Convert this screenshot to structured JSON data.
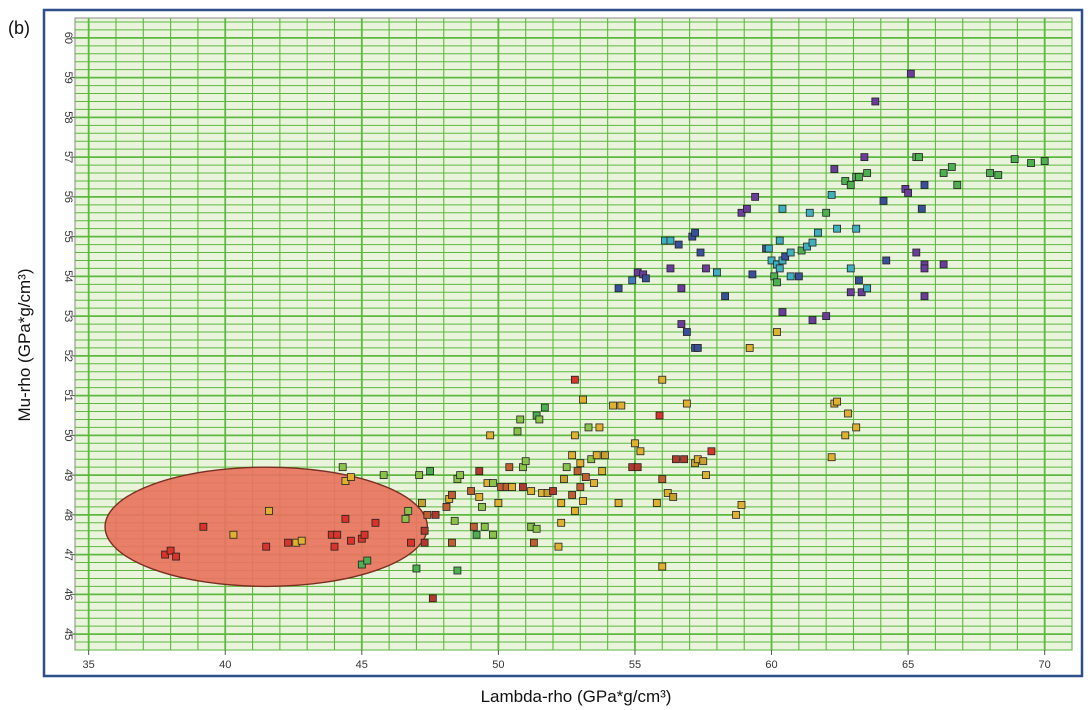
{
  "panel_label": "(b)",
  "chart_data": {
    "type": "scatter",
    "xlabel": "Lambda-rho (GPa*g/cm³)",
    "ylabel": "Mu-rho (GPa*g/cm³)",
    "xlim": [
      34.5,
      71
    ],
    "ylim": [
      44.6,
      60.5
    ],
    "xticks": [
      35,
      40,
      45,
      50,
      55,
      60,
      65,
      70
    ],
    "yticks": [
      45,
      46,
      47,
      48,
      49,
      50,
      51,
      52,
      53,
      54,
      55,
      56,
      57,
      58,
      59,
      60
    ],
    "ytick_labels": [
      "45",
      "46",
      "47",
      "48",
      "49",
      "50",
      "51",
      "52",
      "53",
      "54",
      "55",
      "56",
      "57",
      "58",
      "59",
      "60"
    ],
    "grid": true,
    "colors": {
      "background": "#eaf4dc",
      "grid": "#5cb83f",
      "frame": "#2f4f8a",
      "ellipse_fill": "#e8735e",
      "ellipse_stroke": "#7a2e22"
    },
    "highlight_ellipse": {
      "cx": 41.5,
      "cy": 47.7,
      "rx": 5.9,
      "ry": 1.5
    },
    "points": [
      {
        "x": 37.8,
        "y": 47.0,
        "c": "#d9342b"
      },
      {
        "x": 38.0,
        "y": 47.1,
        "c": "#d9342b"
      },
      {
        "x": 38.2,
        "y": 46.95,
        "c": "#d9342b"
      },
      {
        "x": 39.2,
        "y": 47.7,
        "c": "#d9342b"
      },
      {
        "x": 40.3,
        "y": 47.5,
        "c": "#e0b030"
      },
      {
        "x": 41.5,
        "y": 47.2,
        "c": "#d9342b"
      },
      {
        "x": 41.6,
        "y": 48.1,
        "c": "#e0b030"
      },
      {
        "x": 42.3,
        "y": 47.3,
        "c": "#d9342b"
      },
      {
        "x": 42.6,
        "y": 47.3,
        "c": "#e0b030"
      },
      {
        "x": 42.8,
        "y": 47.35,
        "c": "#e0b030"
      },
      {
        "x": 43.9,
        "y": 47.5,
        "c": "#d9342b"
      },
      {
        "x": 44.1,
        "y": 47.5,
        "c": "#d9342b"
      },
      {
        "x": 44.0,
        "y": 47.2,
        "c": "#d9342b"
      },
      {
        "x": 44.4,
        "y": 47.9,
        "c": "#d9342b"
      },
      {
        "x": 44.6,
        "y": 47.35,
        "c": "#d9342b"
      },
      {
        "x": 45.0,
        "y": 47.4,
        "c": "#d9342b"
      },
      {
        "x": 45.1,
        "y": 47.5,
        "c": "#d9342b"
      },
      {
        "x": 45.5,
        "y": 47.8,
        "c": "#d9342b"
      },
      {
        "x": 44.3,
        "y": 49.2,
        "c": "#8bc34a"
      },
      {
        "x": 44.4,
        "y": 48.85,
        "c": "#e0b030"
      },
      {
        "x": 44.6,
        "y": 48.95,
        "c": "#e0b030"
      },
      {
        "x": 45.0,
        "y": 46.75,
        "c": "#4caf50"
      },
      {
        "x": 45.2,
        "y": 46.85,
        "c": "#4caf50"
      },
      {
        "x": 45.8,
        "y": 49.0,
        "c": "#8bc34a"
      },
      {
        "x": 46.6,
        "y": 47.9,
        "c": "#8bc34a"
      },
      {
        "x": 46.7,
        "y": 48.1,
        "c": "#8bc34a"
      },
      {
        "x": 46.8,
        "y": 47.3,
        "c": "#d9342b"
      },
      {
        "x": 47.0,
        "y": 46.65,
        "c": "#4caf50"
      },
      {
        "x": 47.1,
        "y": 49.0,
        "c": "#8bc34a"
      },
      {
        "x": 47.2,
        "y": 48.3,
        "c": "#c8a02e"
      },
      {
        "x": 47.3,
        "y": 47.6,
        "c": "#b03a2e"
      },
      {
        "x": 47.3,
        "y": 47.3,
        "c": "#b03a2e"
      },
      {
        "x": 47.4,
        "y": 48.0,
        "c": "#c06030"
      },
      {
        "x": 47.5,
        "y": 49.1,
        "c": "#4caf50"
      },
      {
        "x": 47.6,
        "y": 45.9,
        "c": "#b03a2e"
      },
      {
        "x": 47.7,
        "y": 48.0,
        "c": "#b03a2e"
      },
      {
        "x": 48.1,
        "y": 48.2,
        "c": "#c06030"
      },
      {
        "x": 48.2,
        "y": 48.4,
        "c": "#e0b030"
      },
      {
        "x": 48.3,
        "y": 48.5,
        "c": "#c06030"
      },
      {
        "x": 48.3,
        "y": 47.3,
        "c": "#c06030"
      },
      {
        "x": 48.4,
        "y": 47.85,
        "c": "#8bc34a"
      },
      {
        "x": 48.5,
        "y": 48.9,
        "c": "#8bc34a"
      },
      {
        "x": 48.5,
        "y": 46.6,
        "c": "#4caf50"
      },
      {
        "x": 48.6,
        "y": 49.0,
        "c": "#8bc34a"
      },
      {
        "x": 49.0,
        "y": 48.6,
        "c": "#c06030"
      },
      {
        "x": 49.1,
        "y": 47.7,
        "c": "#c06030"
      },
      {
        "x": 49.2,
        "y": 47.5,
        "c": "#4caf50"
      },
      {
        "x": 49.3,
        "y": 48.45,
        "c": "#e0b030"
      },
      {
        "x": 49.3,
        "y": 49.1,
        "c": "#b03a2e"
      },
      {
        "x": 49.4,
        "y": 48.2,
        "c": "#8bc34a"
      },
      {
        "x": 49.5,
        "y": 47.7,
        "c": "#8bc34a"
      },
      {
        "x": 49.6,
        "y": 48.8,
        "c": "#e0b030"
      },
      {
        "x": 49.7,
        "y": 50.0,
        "c": "#e0b030"
      },
      {
        "x": 49.8,
        "y": 48.8,
        "c": "#8bc34a"
      },
      {
        "x": 49.8,
        "y": 47.5,
        "c": "#8bc34a"
      },
      {
        "x": 50.0,
        "y": 48.3,
        "c": "#e0b030"
      },
      {
        "x": 50.1,
        "y": 48.7,
        "c": "#c06030"
      },
      {
        "x": 50.3,
        "y": 48.7,
        "c": "#c06030"
      },
      {
        "x": 50.4,
        "y": 49.2,
        "c": "#c06030"
      },
      {
        "x": 50.5,
        "y": 48.7,
        "c": "#e0b030"
      },
      {
        "x": 50.7,
        "y": 50.1,
        "c": "#8bc34a"
      },
      {
        "x": 50.8,
        "y": 50.4,
        "c": "#8bc34a"
      },
      {
        "x": 50.9,
        "y": 49.2,
        "c": "#8bc34a"
      },
      {
        "x": 50.9,
        "y": 48.7,
        "c": "#b03a2e"
      },
      {
        "x": 51.0,
        "y": 49.35,
        "c": "#8bc34a"
      },
      {
        "x": 51.2,
        "y": 48.6,
        "c": "#e0b030"
      },
      {
        "x": 51.2,
        "y": 47.7,
        "c": "#8bc34a"
      },
      {
        "x": 51.3,
        "y": 47.3,
        "c": "#c06030"
      },
      {
        "x": 51.4,
        "y": 47.65,
        "c": "#8bc34a"
      },
      {
        "x": 51.4,
        "y": 50.5,
        "c": "#4caf50"
      },
      {
        "x": 51.5,
        "y": 50.4,
        "c": "#8bc34a"
      },
      {
        "x": 51.6,
        "y": 48.55,
        "c": "#e0b030"
      },
      {
        "x": 51.7,
        "y": 50.7,
        "c": "#4caf50"
      },
      {
        "x": 51.8,
        "y": 48.55,
        "c": "#c8a02e"
      },
      {
        "x": 52.0,
        "y": 48.6,
        "c": "#b03a2e"
      },
      {
        "x": 52.2,
        "y": 47.2,
        "c": "#e0b030"
      },
      {
        "x": 52.3,
        "y": 48.3,
        "c": "#e0b030"
      },
      {
        "x": 52.3,
        "y": 47.8,
        "c": "#e0b030"
      },
      {
        "x": 52.4,
        "y": 48.9,
        "c": "#c8a02e"
      },
      {
        "x": 52.5,
        "y": 49.2,
        "c": "#8bc34a"
      },
      {
        "x": 52.7,
        "y": 48.5,
        "c": "#c06030"
      },
      {
        "x": 52.7,
        "y": 49.5,
        "c": "#e0b030"
      },
      {
        "x": 52.8,
        "y": 48.1,
        "c": "#e0b030"
      },
      {
        "x": 52.8,
        "y": 50.0,
        "c": "#e0b030"
      },
      {
        "x": 52.8,
        "y": 51.4,
        "c": "#d9342b"
      },
      {
        "x": 52.9,
        "y": 49.1,
        "c": "#c06030"
      },
      {
        "x": 53.0,
        "y": 48.7,
        "c": "#c06030"
      },
      {
        "x": 53.0,
        "y": 49.3,
        "c": "#e0b030"
      },
      {
        "x": 53.1,
        "y": 48.35,
        "c": "#e0b030"
      },
      {
        "x": 53.1,
        "y": 50.9,
        "c": "#e0b030"
      },
      {
        "x": 53.2,
        "y": 48.95,
        "c": "#c06030"
      },
      {
        "x": 53.3,
        "y": 50.2,
        "c": "#8bc34a"
      },
      {
        "x": 53.4,
        "y": 49.4,
        "c": "#8bc34a"
      },
      {
        "x": 53.5,
        "y": 48.8,
        "c": "#e0b030"
      },
      {
        "x": 53.6,
        "y": 49.5,
        "c": "#e0b030"
      },
      {
        "x": 53.7,
        "y": 50.2,
        "c": "#e0b030"
      },
      {
        "x": 53.8,
        "y": 49.1,
        "c": "#e0b030"
      },
      {
        "x": 53.9,
        "y": 49.5,
        "c": "#c8a02e"
      },
      {
        "x": 54.2,
        "y": 50.75,
        "c": "#e0b030"
      },
      {
        "x": 54.4,
        "y": 48.3,
        "c": "#e0b030"
      },
      {
        "x": 54.5,
        "y": 50.75,
        "c": "#e0b030"
      },
      {
        "x": 54.9,
        "y": 49.2,
        "c": "#b03a2e"
      },
      {
        "x": 55.1,
        "y": 49.2,
        "c": "#b03a2e"
      },
      {
        "x": 55.0,
        "y": 49.8,
        "c": "#e0b030"
      },
      {
        "x": 55.2,
        "y": 49.6,
        "c": "#e0b030"
      },
      {
        "x": 55.8,
        "y": 48.3,
        "c": "#e0b030"
      },
      {
        "x": 55.9,
        "y": 50.5,
        "c": "#d9342b"
      },
      {
        "x": 56.0,
        "y": 51.4,
        "c": "#e0b030"
      },
      {
        "x": 56.0,
        "y": 48.9,
        "c": "#c06030"
      },
      {
        "x": 56.0,
        "y": 46.7,
        "c": "#e0b030"
      },
      {
        "x": 56.2,
        "y": 48.55,
        "c": "#e0b030"
      },
      {
        "x": 56.4,
        "y": 48.45,
        "c": "#c8a02e"
      },
      {
        "x": 56.5,
        "y": 49.4,
        "c": "#b03a2e"
      },
      {
        "x": 56.8,
        "y": 49.4,
        "c": "#b03a2e"
      },
      {
        "x": 56.9,
        "y": 50.8,
        "c": "#e0b030"
      },
      {
        "x": 57.2,
        "y": 49.3,
        "c": "#c8a02e"
      },
      {
        "x": 57.3,
        "y": 49.4,
        "c": "#e0b030"
      },
      {
        "x": 57.5,
        "y": 49.35,
        "c": "#c8a02e"
      },
      {
        "x": 57.6,
        "y": 49.0,
        "c": "#e0b030"
      },
      {
        "x": 57.8,
        "y": 49.6,
        "c": "#d9342b"
      },
      {
        "x": 58.7,
        "y": 48.0,
        "c": "#e0b030"
      },
      {
        "x": 58.9,
        "y": 48.25,
        "c": "#e0b030"
      },
      {
        "x": 59.2,
        "y": 52.2,
        "c": "#e0b030"
      },
      {
        "x": 60.2,
        "y": 52.6,
        "c": "#e0b030"
      },
      {
        "x": 62.2,
        "y": 49.45,
        "c": "#e0b030"
      },
      {
        "x": 62.3,
        "y": 50.8,
        "c": "#e0b030"
      },
      {
        "x": 62.4,
        "y": 50.85,
        "c": "#e0b030"
      },
      {
        "x": 62.7,
        "y": 50.0,
        "c": "#e0b030"
      },
      {
        "x": 62.8,
        "y": 50.55,
        "c": "#e0b030"
      },
      {
        "x": 63.1,
        "y": 50.2,
        "c": "#e0b030"
      },
      {
        "x": 54.4,
        "y": 53.7,
        "c": "#3a4f9a"
      },
      {
        "x": 54.9,
        "y": 53.9,
        "c": "#3f7fc0"
      },
      {
        "x": 55.1,
        "y": 54.1,
        "c": "#6a3d9a"
      },
      {
        "x": 55.3,
        "y": 54.05,
        "c": "#6a3d9a"
      },
      {
        "x": 55.4,
        "y": 53.95,
        "c": "#3a4f9a"
      },
      {
        "x": 56.1,
        "y": 54.9,
        "c": "#3fb0c0"
      },
      {
        "x": 56.3,
        "y": 54.9,
        "c": "#3fb0c0"
      },
      {
        "x": 56.3,
        "y": 54.2,
        "c": "#6a3d9a"
      },
      {
        "x": 56.6,
        "y": 54.8,
        "c": "#3a4f9a"
      },
      {
        "x": 56.7,
        "y": 53.7,
        "c": "#6a3d9a"
      },
      {
        "x": 56.7,
        "y": 52.8,
        "c": "#6a3d9a"
      },
      {
        "x": 56.9,
        "y": 52.6,
        "c": "#3a4f9a"
      },
      {
        "x": 57.1,
        "y": 55.0,
        "c": "#3a4f9a"
      },
      {
        "x": 57.2,
        "y": 55.1,
        "c": "#3a4f9a"
      },
      {
        "x": 57.2,
        "y": 52.2,
        "c": "#3a4f9a"
      },
      {
        "x": 57.3,
        "y": 52.2,
        "c": "#3a4f9a"
      },
      {
        "x": 57.4,
        "y": 54.6,
        "c": "#3a4f9a"
      },
      {
        "x": 57.6,
        "y": 54.2,
        "c": "#6a3d9a"
      },
      {
        "x": 58.0,
        "y": 54.1,
        "c": "#3fb0c0"
      },
      {
        "x": 58.3,
        "y": 53.5,
        "c": "#3a4f9a"
      },
      {
        "x": 58.9,
        "y": 55.6,
        "c": "#6a3d9a"
      },
      {
        "x": 59.1,
        "y": 55.7,
        "c": "#6a3d9a"
      },
      {
        "x": 59.3,
        "y": 54.05,
        "c": "#3a4f9a"
      },
      {
        "x": 59.4,
        "y": 56.0,
        "c": "#6a3d9a"
      },
      {
        "x": 59.8,
        "y": 54.7,
        "c": "#3a4f9a"
      },
      {
        "x": 59.9,
        "y": 54.7,
        "c": "#3fb0c0"
      },
      {
        "x": 60.0,
        "y": 54.4,
        "c": "#3fb0c0"
      },
      {
        "x": 60.1,
        "y": 54.0,
        "c": "#4caf50"
      },
      {
        "x": 60.2,
        "y": 53.85,
        "c": "#4caf50"
      },
      {
        "x": 60.2,
        "y": 54.3,
        "c": "#3fb0c0"
      },
      {
        "x": 60.3,
        "y": 54.9,
        "c": "#3fb0c0"
      },
      {
        "x": 60.3,
        "y": 54.2,
        "c": "#3fb0c0"
      },
      {
        "x": 60.4,
        "y": 55.7,
        "c": "#3fb0c0"
      },
      {
        "x": 60.4,
        "y": 54.4,
        "c": "#3fb0c0"
      },
      {
        "x": 60.4,
        "y": 53.1,
        "c": "#6a3d9a"
      },
      {
        "x": 60.5,
        "y": 54.5,
        "c": "#3a4f9a"
      },
      {
        "x": 60.7,
        "y": 54.6,
        "c": "#3fb0c0"
      },
      {
        "x": 60.7,
        "y": 54.0,
        "c": "#3fb0c0"
      },
      {
        "x": 61.0,
        "y": 54.0,
        "c": "#3a4f9a"
      },
      {
        "x": 61.1,
        "y": 54.65,
        "c": "#4caf50"
      },
      {
        "x": 61.3,
        "y": 54.75,
        "c": "#3fb0c0"
      },
      {
        "x": 61.4,
        "y": 55.6,
        "c": "#3fb0c0"
      },
      {
        "x": 61.5,
        "y": 54.85,
        "c": "#3fb0c0"
      },
      {
        "x": 61.5,
        "y": 52.9,
        "c": "#6a3d9a"
      },
      {
        "x": 61.7,
        "y": 55.1,
        "c": "#3fb0c0"
      },
      {
        "x": 62.0,
        "y": 55.6,
        "c": "#4caf50"
      },
      {
        "x": 62.0,
        "y": 53.0,
        "c": "#6a3d9a"
      },
      {
        "x": 62.2,
        "y": 56.05,
        "c": "#3fb0c0"
      },
      {
        "x": 62.3,
        "y": 56.7,
        "c": "#6a3d9a"
      },
      {
        "x": 62.4,
        "y": 55.2,
        "c": "#3fb0c0"
      },
      {
        "x": 62.7,
        "y": 56.4,
        "c": "#4caf50"
      },
      {
        "x": 62.9,
        "y": 56.3,
        "c": "#4caf50"
      },
      {
        "x": 62.9,
        "y": 54.2,
        "c": "#3fb0c0"
      },
      {
        "x": 62.9,
        "y": 53.6,
        "c": "#6a3d9a"
      },
      {
        "x": 63.1,
        "y": 55.2,
        "c": "#3fb0c0"
      },
      {
        "x": 63.1,
        "y": 56.5,
        "c": "#4caf50"
      },
      {
        "x": 63.2,
        "y": 56.5,
        "c": "#4caf50"
      },
      {
        "x": 63.2,
        "y": 53.9,
        "c": "#3a4f9a"
      },
      {
        "x": 63.3,
        "y": 53.6,
        "c": "#6a3d9a"
      },
      {
        "x": 63.4,
        "y": 57.0,
        "c": "#6a3d9a"
      },
      {
        "x": 63.5,
        "y": 53.7,
        "c": "#3fb0c0"
      },
      {
        "x": 63.5,
        "y": 56.6,
        "c": "#4caf50"
      },
      {
        "x": 63.8,
        "y": 58.4,
        "c": "#6a3d9a"
      },
      {
        "x": 64.1,
        "y": 55.9,
        "c": "#3a4f9a"
      },
      {
        "x": 64.2,
        "y": 54.4,
        "c": "#3a4f9a"
      },
      {
        "x": 64.9,
        "y": 56.2,
        "c": "#6a3d9a"
      },
      {
        "x": 65.0,
        "y": 56.1,
        "c": "#6a3d9a"
      },
      {
        "x": 65.1,
        "y": 59.1,
        "c": "#6a3d9a"
      },
      {
        "x": 65.3,
        "y": 54.6,
        "c": "#6a3d9a"
      },
      {
        "x": 65.3,
        "y": 57.0,
        "c": "#4caf50"
      },
      {
        "x": 65.4,
        "y": 57.0,
        "c": "#4caf50"
      },
      {
        "x": 65.5,
        "y": 55.7,
        "c": "#3a4f9a"
      },
      {
        "x": 65.6,
        "y": 53.5,
        "c": "#6a3d9a"
      },
      {
        "x": 65.6,
        "y": 56.3,
        "c": "#3a4f9a"
      },
      {
        "x": 65.6,
        "y": 54.3,
        "c": "#6a3d9a"
      },
      {
        "x": 65.6,
        "y": 54.2,
        "c": "#6a3d9a"
      },
      {
        "x": 66.3,
        "y": 54.3,
        "c": "#6a3d9a"
      },
      {
        "x": 66.3,
        "y": 56.6,
        "c": "#4caf50"
      },
      {
        "x": 66.6,
        "y": 56.75,
        "c": "#4caf50"
      },
      {
        "x": 66.8,
        "y": 56.3,
        "c": "#4caf50"
      },
      {
        "x": 68.0,
        "y": 56.6,
        "c": "#4caf50"
      },
      {
        "x": 68.3,
        "y": 56.55,
        "c": "#4caf50"
      },
      {
        "x": 68.9,
        "y": 56.95,
        "c": "#4caf50"
      },
      {
        "x": 69.5,
        "y": 56.85,
        "c": "#4caf50"
      },
      {
        "x": 70.0,
        "y": 56.9,
        "c": "#4caf50"
      }
    ]
  }
}
